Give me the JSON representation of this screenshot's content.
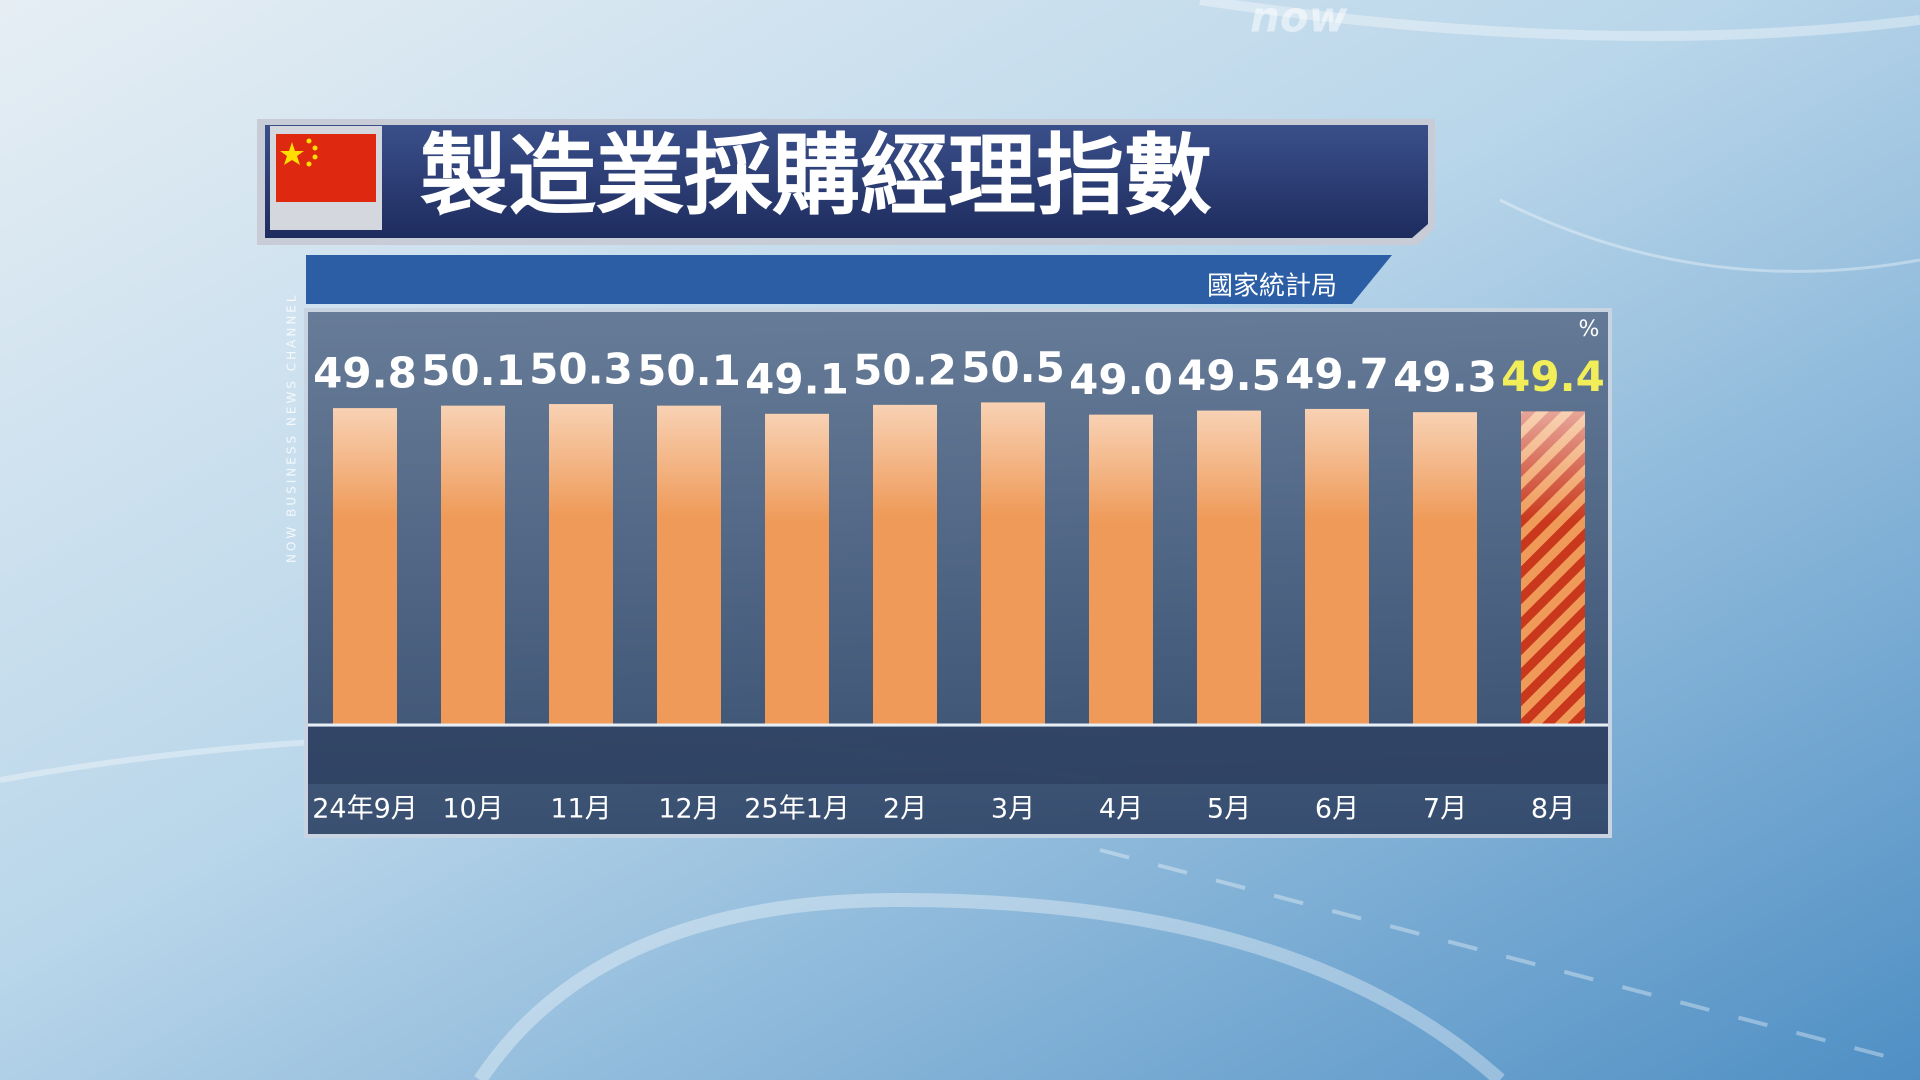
{
  "logo": "now",
  "watermark": "NOW BUSINESS NEWS CHANNEL",
  "chart_data": {
    "type": "bar",
    "title": "製造業採購經理指數",
    "source": "國家統計局",
    "unit": "%",
    "categories": [
      "24年9月",
      "10月",
      "11月",
      "12月",
      "25年1月",
      "2月",
      "3月",
      "4月",
      "5月",
      "6月",
      "7月",
      "8月"
    ],
    "values": [
      49.8,
      50.1,
      50.3,
      50.1,
      49.1,
      50.2,
      50.5,
      49.0,
      49.5,
      49.7,
      49.3,
      49.4
    ],
    "value_labels": [
      "49.8",
      "50.1",
      "50.3",
      "50.1",
      "49.1",
      "50.2",
      "50.5",
      "49.0",
      "49.5",
      "49.7",
      "49.3",
      "49.4"
    ],
    "color": "#ef9a58",
    "hatched": [
      false,
      false,
      false,
      false,
      false,
      false,
      false,
      false,
      false,
      false,
      false,
      true
    ],
    "hatch_color": "#c9381c",
    "label_colors": [
      "#ffffff",
      "#ffffff",
      "#ffffff",
      "#ffffff",
      "#ffffff",
      "#ffffff",
      "#ffffff",
      "#ffffff",
      "#ffffff",
      "#ffffff",
      "#ffffff",
      "#f2ee5a"
    ],
    "ylim": [
      11,
      53
    ]
  }
}
